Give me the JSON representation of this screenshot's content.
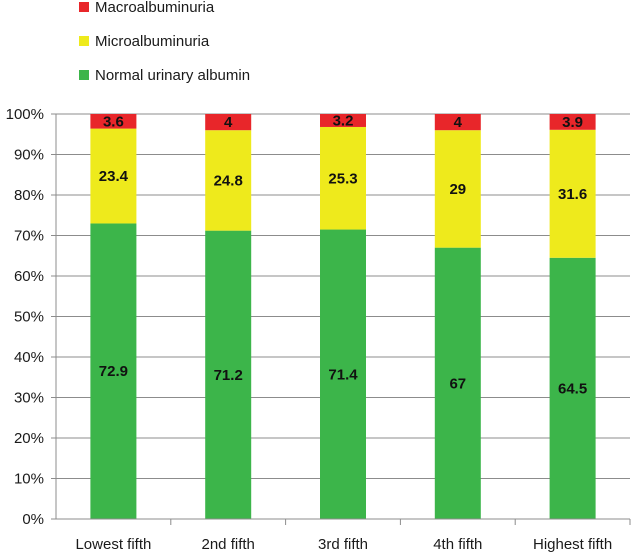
{
  "chart_data": {
    "type": "bar",
    "stacked": true,
    "percent_stacked": true,
    "categories": [
      "Lowest fifth",
      "2nd fifth",
      "3rd fifth",
      "4th fifth",
      "Highest fifth"
    ],
    "series": [
      {
        "name": "Normal urinary albumin",
        "color": "#3cb54a",
        "values": [
          72.9,
          71.2,
          71.4,
          67,
          64.5
        ]
      },
      {
        "name": "Microalbuminuria",
        "color": "#eeea1c",
        "values": [
          23.4,
          24.8,
          25.3,
          29,
          31.6
        ]
      },
      {
        "name": "Macroalbuminuria",
        "color": "#e8262a",
        "values": [
          3.6,
          4,
          3.2,
          4,
          3.9
        ]
      }
    ],
    "data_labels": [
      [
        "72.9",
        "71.2",
        "71.4",
        "67",
        "64.5"
      ],
      [
        "23.4",
        "24.8",
        "25.3",
        "29",
        "31.6"
      ],
      [
        "3.6",
        "4",
        "3.2",
        "4",
        "3.9"
      ]
    ],
    "y_ticks": [
      "0%",
      "10%",
      "20%",
      "30%",
      "40%",
      "50%",
      "60%",
      "70%",
      "80%",
      "90%",
      "100%"
    ],
    "ylim": [
      0,
      100
    ],
    "grid": true,
    "legend_position": "top-left",
    "legend_order": [
      "Macroalbuminuria",
      "Microalbuminuria",
      "Normal urinary albumin"
    ],
    "title": "",
    "xlabel": "",
    "ylabel": ""
  }
}
